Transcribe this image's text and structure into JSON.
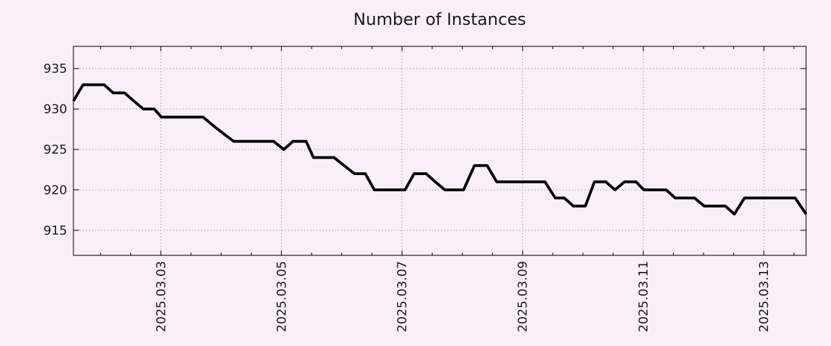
{
  "chart_data": {
    "type": "line",
    "title": "Number of Instances",
    "x_axis": {
      "xlim": [
        1.55,
        13.7
      ],
      "major_ticks": [
        {
          "t": 3,
          "label": "2025.03.03"
        },
        {
          "t": 5,
          "label": "2025.03.05"
        },
        {
          "t": 7,
          "label": "2025.03.07"
        },
        {
          "t": 9,
          "label": "2025.03.09"
        },
        {
          "t": 11,
          "label": "2025.03.11"
        },
        {
          "t": 13,
          "label": "2025.03.13"
        }
      ],
      "minor_tick_step": 0.5,
      "tick_label_rotation": -90
    },
    "y_axis": {
      "ylim": [
        911.9,
        937.75
      ],
      "ticks": [
        915,
        920,
        925,
        930,
        935
      ]
    },
    "grid": {
      "horizontal_at_y_ticks": true,
      "vertical_at_x_major_ticks": true,
      "style": "dotted"
    },
    "legend": "none",
    "series": [
      {
        "name": "instances",
        "color": "#000000",
        "points": [
          [
            1.55,
            931
          ],
          [
            1.71,
            933
          ],
          [
            2.06,
            933
          ],
          [
            2.21,
            932
          ],
          [
            2.4,
            932
          ],
          [
            2.55,
            931
          ],
          [
            2.71,
            930
          ],
          [
            2.89,
            930
          ],
          [
            3.01,
            929
          ],
          [
            3.7,
            929
          ],
          [
            3.86,
            928
          ],
          [
            4.03,
            927
          ],
          [
            4.21,
            926
          ],
          [
            4.87,
            926
          ],
          [
            5.04,
            925
          ],
          [
            5.19,
            926
          ],
          [
            5.41,
            926
          ],
          [
            5.53,
            924
          ],
          [
            5.87,
            924
          ],
          [
            6.04,
            923
          ],
          [
            6.21,
            922
          ],
          [
            6.39,
            922
          ],
          [
            6.54,
            920
          ],
          [
            7.05,
            920
          ],
          [
            7.2,
            922
          ],
          [
            7.4,
            922
          ],
          [
            7.55,
            921
          ],
          [
            7.71,
            920
          ],
          [
            8.02,
            920
          ],
          [
            8.2,
            923
          ],
          [
            8.41,
            923
          ],
          [
            8.57,
            921
          ],
          [
            9.37,
            921
          ],
          [
            9.54,
            919
          ],
          [
            9.69,
            919
          ],
          [
            9.84,
            918
          ],
          [
            10.04,
            918
          ],
          [
            10.19,
            921
          ],
          [
            10.38,
            921
          ],
          [
            10.53,
            920
          ],
          [
            10.69,
            921
          ],
          [
            10.88,
            921
          ],
          [
            11.01,
            920
          ],
          [
            11.38,
            920
          ],
          [
            11.53,
            919
          ],
          [
            11.85,
            919
          ],
          [
            12.01,
            918
          ],
          [
            12.36,
            918
          ],
          [
            12.51,
            917
          ],
          [
            12.68,
            919
          ],
          [
            13.52,
            919
          ],
          [
            13.7,
            917
          ]
        ]
      }
    ],
    "colors": {
      "background": "#f9eef9",
      "grid": "#999999",
      "axis": "#1c1c1c",
      "text": "#1a1a1a",
      "line": "#000000"
    }
  }
}
